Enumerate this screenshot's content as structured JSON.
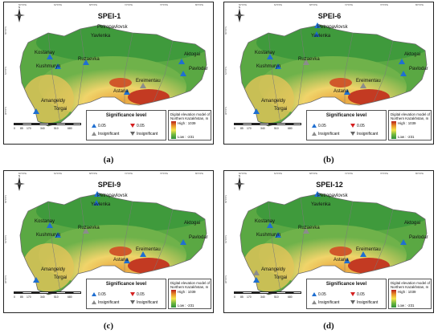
{
  "figure": {
    "legend": {
      "title": "Significance level",
      "up_sig": "0.05",
      "down_sig": "0.05",
      "up_insig": "Insignificant",
      "down_insig": "Insignificant"
    },
    "dem": {
      "title": "Digital elevation model of Northern Kazakhstan, m",
      "high": "High : 1039",
      "low": "Low : -231"
    },
    "scale_labels": [
      "0",
      "85",
      "170",
      "340",
      "510",
      "680"
    ],
    "ticks": {
      "top": [
        "60°0'0\"E",
        "64°0'0\"E",
        "68°0'0\"E",
        "72°0'0\"E",
        "76°0'0\"E",
        "80°0'0\"E"
      ],
      "left": [
        "56°0'0\"N",
        "52°0'0\"N",
        "48°0'0\"N"
      ]
    },
    "colors": {
      "triangle_blue": "#1f6fd1",
      "triangle_grey": "#8c8c8c",
      "triangle_red": "#d42020",
      "triangle_darkgrey": "#666666"
    }
  },
  "panels": [
    {
      "title": "SPEI-1",
      "caption": "(a)",
      "cities": [
        {
          "name": "Petropavlovsk",
          "marker": "none"
        },
        {
          "name": "Yavlenka",
          "marker": "none"
        },
        {
          "name": "Kostanay",
          "marker": "blue"
        },
        {
          "name": "Ruzaevka",
          "marker": "blue"
        },
        {
          "name": "Kushmuryn",
          "marker": "blue"
        },
        {
          "name": "Aktogai",
          "marker": "blue"
        },
        {
          "name": "Pavlodar",
          "marker": "blue"
        },
        {
          "name": "Ereimentau",
          "marker": "grey"
        },
        {
          "name": "Astana",
          "marker": "blue"
        },
        {
          "name": "Amangeldy",
          "marker": "none"
        },
        {
          "name": "Torgai",
          "marker": "blue"
        }
      ]
    },
    {
      "title": "SPEI-6",
      "caption": "(b)",
      "cities": [
        {
          "name": "Petropavlovsk",
          "marker": "blue"
        },
        {
          "name": "Yavlenka",
          "marker": "blue"
        },
        {
          "name": "Kostanay",
          "marker": "blue"
        },
        {
          "name": "Ruzaevka",
          "marker": "grey"
        },
        {
          "name": "Kushmuryn",
          "marker": "blue"
        },
        {
          "name": "Aktogai",
          "marker": "blue"
        },
        {
          "name": "Pavlodar",
          "marker": "blue"
        },
        {
          "name": "Ereimentau",
          "marker": "grey"
        },
        {
          "name": "Astana",
          "marker": "blue"
        },
        {
          "name": "Amangeldy",
          "marker": "none"
        },
        {
          "name": "Torgai",
          "marker": "blue"
        }
      ]
    },
    {
      "title": "SPEI-9",
      "caption": "(c)",
      "cities": [
        {
          "name": "Petropavlovsk",
          "marker": "blue"
        },
        {
          "name": "Yavlenka",
          "marker": "blue"
        },
        {
          "name": "Kostanay",
          "marker": "blue"
        },
        {
          "name": "Ruzaevka",
          "marker": "grey"
        },
        {
          "name": "Kushmuryn",
          "marker": "blue"
        },
        {
          "name": "Aktogai",
          "marker": "none"
        },
        {
          "name": "Pavlodar",
          "marker": "blue"
        },
        {
          "name": "Ereimentau",
          "marker": "blue"
        },
        {
          "name": "Astana",
          "marker": "blue"
        },
        {
          "name": "Amangeldy",
          "marker": "none"
        },
        {
          "name": "Torgai",
          "marker": "blue"
        }
      ]
    },
    {
      "title": "SPEI-12",
      "caption": "(d)",
      "cities": [
        {
          "name": "Petropavlovsk",
          "marker": "blue"
        },
        {
          "name": "Yavlenka",
          "marker": "none"
        },
        {
          "name": "Kostanay",
          "marker": "blue"
        },
        {
          "name": "Ruzaevka",
          "marker": "grey"
        },
        {
          "name": "Kushmuryn",
          "marker": "blue"
        },
        {
          "name": "Aktogai",
          "marker": "none"
        },
        {
          "name": "Pavlodar",
          "marker": "blue"
        },
        {
          "name": "Ereimentau",
          "marker": "blue"
        },
        {
          "name": "Astana",
          "marker": "blue"
        },
        {
          "name": "Amangeldy",
          "marker": "grey"
        },
        {
          "name": "Torgai",
          "marker": "blue"
        }
      ]
    }
  ]
}
